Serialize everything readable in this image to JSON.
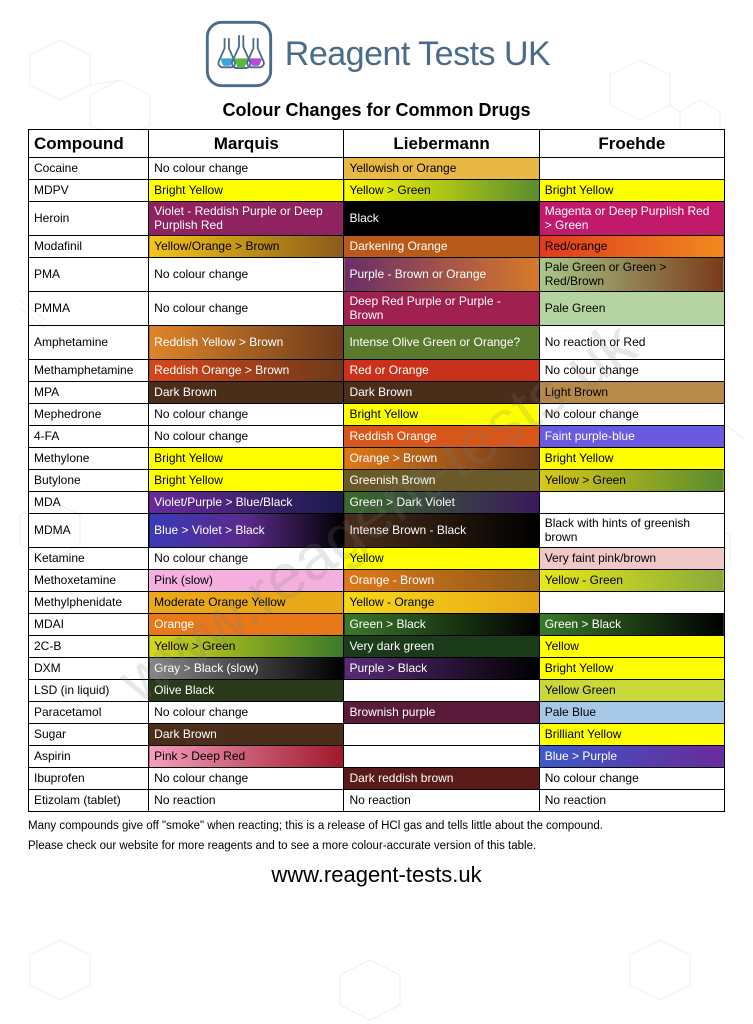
{
  "brand": "Reagent Tests UK",
  "subtitle": "Colour Changes for Common Drugs",
  "watermark": "www.reagent-tests.uk",
  "columns": [
    "Compound",
    "Marquis",
    "Liebermann",
    "Froehde"
  ],
  "rows": [
    {
      "compound": "Cocaine",
      "cells": [
        {
          "text": "No colour change",
          "bg": "#ffffff",
          "fg": "#000000"
        },
        {
          "text": "Yellowish or Orange",
          "bg": "#e8b845",
          "fg": "#000000"
        },
        {
          "text": "",
          "bg": "#ffffff",
          "fg": "#000000"
        }
      ]
    },
    {
      "compound": "MDPV",
      "cells": [
        {
          "text": "Bright Yellow",
          "bg": "#ffff00",
          "fg": "#000000"
        },
        {
          "text": "Yellow > Green",
          "bg": "linear-gradient(to right,#ffff00,#5a8c2e)",
          "fg": "#000000"
        },
        {
          "text": "Bright Yellow",
          "bg": "#ffff00",
          "fg": "#000000"
        }
      ]
    },
    {
      "compound": "Heroin",
      "multiline": true,
      "cells": [
        {
          "text": "Violet - Reddish Purple or Deep Purplish Red",
          "bg": "#8e2360",
          "fg": "#ffffff"
        },
        {
          "text": "Black",
          "bg": "#000000",
          "fg": "#ffffff"
        },
        {
          "text": "Magenta or Deep Purplish Red > Green",
          "bg": "#c21a6b",
          "fg": "#ffffff"
        }
      ]
    },
    {
      "compound": "Modafinil",
      "cells": [
        {
          "text": "Yellow/Orange > Brown",
          "bg": "linear-gradient(to right,#f5c518,#8b5a1a)",
          "fg": "#000000"
        },
        {
          "text": "Darkening Orange",
          "bg": "#b85a1a",
          "fg": "#ffffff"
        },
        {
          "text": "Red/orange",
          "bg": "linear-gradient(to right,#e0391f,#f08a1f)",
          "fg": "#000000"
        }
      ]
    },
    {
      "compound": "PMA",
      "multiline": true,
      "cells": [
        {
          "text": "No colour change",
          "bg": "#ffffff",
          "fg": "#000000"
        },
        {
          "text": "Purple - Brown or Orange",
          "bg": "linear-gradient(to right,#6a2d6a,#d87a2a)",
          "fg": "#ffffff"
        },
        {
          "text": "Pale Green or Green > Red/Brown",
          "bg": "linear-gradient(to right,#a8c98a,#7a3a1a)",
          "fg": "#000000"
        }
      ]
    },
    {
      "compound": "PMMA",
      "multiline": true,
      "cells": [
        {
          "text": "No colour change",
          "bg": "#ffffff",
          "fg": "#000000"
        },
        {
          "text": "Deep Red Purple or Purple - Brown",
          "bg": "#a02050",
          "fg": "#ffffff"
        },
        {
          "text": "Pale Green",
          "bg": "#b6d4a2",
          "fg": "#000000"
        }
      ]
    },
    {
      "compound": "Amphetamine",
      "multiline": true,
      "cells": [
        {
          "text": "Reddish Yellow > Brown",
          "bg": "linear-gradient(to right,#e0852a,#6b3a1a)",
          "fg": "#ffffff"
        },
        {
          "text": "Intense Olive Green or Orange?",
          "bg": "#5a7a2e",
          "fg": "#ffffff"
        },
        {
          "text": "No reaction or Red",
          "bg": "#ffffff",
          "fg": "#000000"
        }
      ]
    },
    {
      "compound": "Methamphetamine",
      "cells": [
        {
          "text": "Reddish Orange >  Brown",
          "bg": "linear-gradient(to right,#d8461a,#6b3a1a)",
          "fg": "#ffffff"
        },
        {
          "text": "Red or Orange",
          "bg": "#c8321a",
          "fg": "#ffffff"
        },
        {
          "text": "No colour change",
          "bg": "#ffffff",
          "fg": "#000000"
        }
      ]
    },
    {
      "compound": "MPA",
      "cells": [
        {
          "text": "Dark Brown",
          "bg": "#4a2e1a",
          "fg": "#ffffff"
        },
        {
          "text": "Dark Brown",
          "bg": "#4a2e1a",
          "fg": "#ffffff"
        },
        {
          "text": "Light Brown",
          "bg": "#b88a4a",
          "fg": "#000000"
        }
      ]
    },
    {
      "compound": "Mephedrone",
      "cells": [
        {
          "text": "No colour change",
          "bg": "#ffffff",
          "fg": "#000000"
        },
        {
          "text": "Bright Yellow",
          "bg": "#ffff00",
          "fg": "#000000"
        },
        {
          "text": "No colour change",
          "bg": "#ffffff",
          "fg": "#000000"
        }
      ]
    },
    {
      "compound": "4-FA",
      "cells": [
        {
          "text": "No colour change",
          "bg": "#ffffff",
          "fg": "#000000"
        },
        {
          "text": "Reddish Orange",
          "bg": "#d8561a",
          "fg": "#ffffff"
        },
        {
          "text": "Faint purple-blue",
          "bg": "#6a5ae0",
          "fg": "#ffffff"
        }
      ]
    },
    {
      "compound": "Methylone",
      "cells": [
        {
          "text": "Bright Yellow",
          "bg": "#ffff00",
          "fg": "#000000"
        },
        {
          "text": "Orange > Brown",
          "bg": "linear-gradient(to right,#e0781a,#6b3a1a)",
          "fg": "#ffffff"
        },
        {
          "text": "Bright Yellow",
          "bg": "#ffff00",
          "fg": "#000000"
        }
      ]
    },
    {
      "compound": "Butylone",
      "cells": [
        {
          "text": "Bright Yellow",
          "bg": "#ffff00",
          "fg": "#000000"
        },
        {
          "text": "Greenish Brown",
          "bg": "#6a5a2a",
          "fg": "#ffffff"
        },
        {
          "text": "Yellow > Green",
          "bg": "linear-gradient(to right,#d8c818,#5a8c2e)",
          "fg": "#000000"
        }
      ]
    },
    {
      "compound": "MDA",
      "cells": [
        {
          "text": "Violet/Purple > Blue/Black",
          "bg": "linear-gradient(to right,#6a2a9a,#1a1a4a)",
          "fg": "#ffffff"
        },
        {
          "text": "Green > Dark Violet",
          "bg": "linear-gradient(to right,#3a6a2a,#3a1a5a)",
          "fg": "#ffffff"
        },
        {
          "text": "",
          "bg": "#ffffff",
          "fg": "#000000"
        }
      ]
    },
    {
      "compound": "MDMA",
      "multiline": true,
      "cells": [
        {
          "text": "Blue > Violet > Black",
          "bg": "linear-gradient(to right,#3a3ab8,#5a2a8a,#000000)",
          "fg": "#ffffff"
        },
        {
          "text": "Intense Brown - Black",
          "bg": "linear-gradient(to right,#4a2e1a,#000000)",
          "fg": "#ffffff"
        },
        {
          "text": "Black with hints of greenish brown",
          "bg": "#ffffff",
          "fg": "#000000"
        }
      ]
    },
    {
      "compound": "Ketamine",
      "cells": [
        {
          "text": "No colour change",
          "bg": "#ffffff",
          "fg": "#000000"
        },
        {
          "text": "Yellow",
          "bg": "#ffff00",
          "fg": "#000000"
        },
        {
          "text": "Very faint pink/brown",
          "bg": "#f0c8c8",
          "fg": "#000000"
        }
      ]
    },
    {
      "compound": "Methoxetamine",
      "cells": [
        {
          "text": "Pink (slow)",
          "bg": "#f5b0e0",
          "fg": "#000000"
        },
        {
          "text": "Orange - Brown",
          "bg": "linear-gradient(to right,#e0781a,#8b5a1a)",
          "fg": "#ffffff"
        },
        {
          "text": "Yellow - Green",
          "bg": "linear-gradient(to right,#e8e818,#8aaa3a)",
          "fg": "#000000"
        }
      ]
    },
    {
      "compound": "Methylphenidate",
      "cells": [
        {
          "text": "Moderate Orange Yellow",
          "bg": "#e8a818",
          "fg": "#000000"
        },
        {
          "text": "Yellow - Orange",
          "bg": "linear-gradient(to right,#f5d818,#e8a818)",
          "fg": "#000000"
        },
        {
          "text": "",
          "bg": "#ffffff",
          "fg": "#000000"
        }
      ]
    },
    {
      "compound": "MDAI",
      "cells": [
        {
          "text": "Orange",
          "bg": "#e87818",
          "fg": "#ffffff"
        },
        {
          "text": "Green > Black",
          "bg": "linear-gradient(to right,#3a7a2a,#000000)",
          "fg": "#ffffff"
        },
        {
          "text": "Green > Black",
          "bg": "linear-gradient(to right,#3a7a2a,#000000)",
          "fg": "#ffffff"
        }
      ]
    },
    {
      "compound": "2C-B",
      "cells": [
        {
          "text": "Yellow > Green",
          "bg": "linear-gradient(to right,#d8d818,#3a7a2a)",
          "fg": "#000000"
        },
        {
          "text": "Very dark green",
          "bg": "#1a3a1a",
          "fg": "#ffffff"
        },
        {
          "text": "Yellow",
          "bg": "#ffff00",
          "fg": "#000000"
        }
      ]
    },
    {
      "compound": "DXM",
      "cells": [
        {
          "text": "Gray > Black (slow)",
          "bg": "linear-gradient(to right,#888888,#000000)",
          "fg": "#ffffff"
        },
        {
          "text": "Purple > Black",
          "bg": "linear-gradient(to right,#5a2a7a,#000000)",
          "fg": "#ffffff"
        },
        {
          "text": "Bright Yellow",
          "bg": "#ffff00",
          "fg": "#000000"
        }
      ]
    },
    {
      "compound": "LSD (in liquid)",
      "cells": [
        {
          "text": "Olive Black",
          "bg": "#2a3a1a",
          "fg": "#ffffff"
        },
        {
          "text": "",
          "bg": "#ffffff",
          "fg": "#000000"
        },
        {
          "text": "Yellow Green",
          "bg": "#c8d83a",
          "fg": "#000000"
        }
      ]
    },
    {
      "compound": "Paracetamol",
      "cells": [
        {
          "text": "No colour change",
          "bg": "#ffffff",
          "fg": "#000000"
        },
        {
          "text": "Brownish purple",
          "bg": "#5a1a3a",
          "fg": "#ffffff"
        },
        {
          "text": "Pale Blue",
          "bg": "#a8c8e8",
          "fg": "#000000"
        }
      ]
    },
    {
      "compound": "Sugar",
      "cells": [
        {
          "text": "Dark Brown",
          "bg": "#4a2e1a",
          "fg": "#ffffff"
        },
        {
          "text": "",
          "bg": "#ffffff",
          "fg": "#000000"
        },
        {
          "text": "Brilliant Yellow",
          "bg": "#ffff00",
          "fg": "#000000"
        }
      ]
    },
    {
      "compound": "Aspirin",
      "cells": [
        {
          "text": "Pink > Deep Red",
          "bg": "linear-gradient(to right,#f5a0c0,#a0182a)",
          "fg": "#000000"
        },
        {
          "text": "",
          "bg": "#ffffff",
          "fg": "#000000"
        },
        {
          "text": "Blue > Purple",
          "bg": "linear-gradient(to right,#3a5ac8,#6a2a9a)",
          "fg": "#ffffff"
        }
      ]
    },
    {
      "compound": "Ibuprofen",
      "cells": [
        {
          "text": "No colour change",
          "bg": "#ffffff",
          "fg": "#000000"
        },
        {
          "text": "Dark reddish brown",
          "bg": "#5a1a1a",
          "fg": "#ffffff"
        },
        {
          "text": "No colour change",
          "bg": "#ffffff",
          "fg": "#000000"
        }
      ]
    },
    {
      "compound": "Etizolam (tablet)",
      "cells": [
        {
          "text": "No reaction",
          "bg": "#ffffff",
          "fg": "#000000"
        },
        {
          "text": "No reaction",
          "bg": "#ffffff",
          "fg": "#000000"
        },
        {
          "text": "No reaction",
          "bg": "#ffffff",
          "fg": "#000000"
        }
      ]
    }
  ],
  "footnote1": "Many compounds give off \"smoke\" when reacting; this is a release of HCl gas and tells little about the compound.",
  "footnote2": "Please check our website for more reagents and to see a more colour-accurate version of this table.",
  "url": "www.reagent-tests.uk"
}
